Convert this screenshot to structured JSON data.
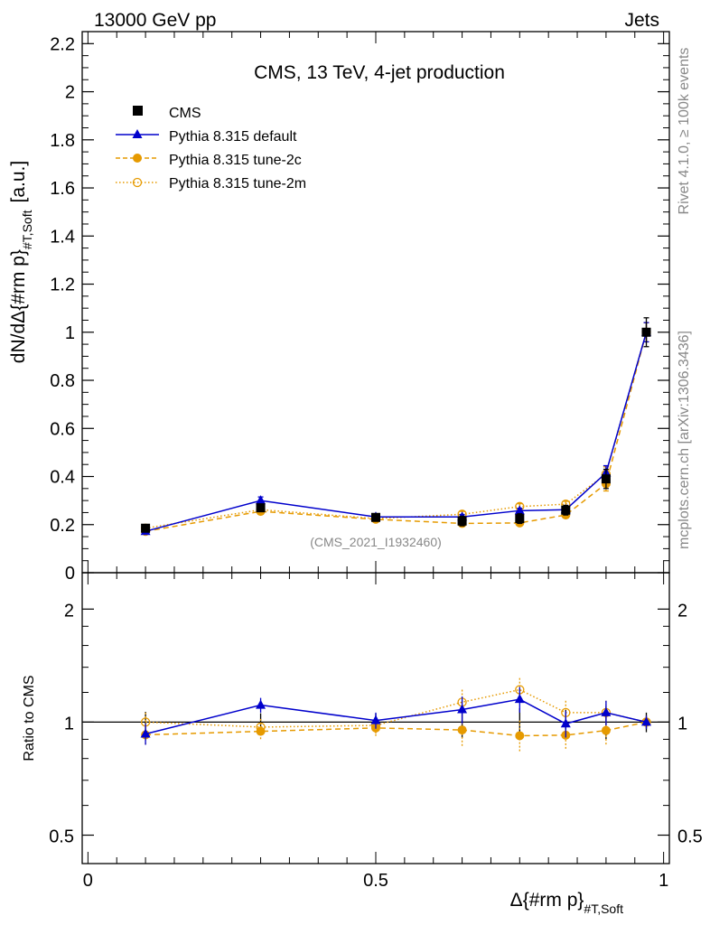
{
  "header": {
    "left": "13000 GeV pp",
    "right": "Jets"
  },
  "side_texts": {
    "rivet": "Rivet 4.1.0, ≥ 100k events",
    "mcplots": "mcplots.cern.ch [arXiv:1306.3436]"
  },
  "colors": {
    "cms": "#000000",
    "default": "#0000cc",
    "tune2c": "#e69a00",
    "tune2m": "#e69a00"
  },
  "chart_data": [
    {
      "type": "line",
      "title": "CMS, 13 TeV, 4-jet production",
      "ylabel_main": "dN/dΔ{#rm p}",
      "ylabel_sub": "#T,Soft",
      "ylabel_unit": "[a.u.]",
      "watermark": "(CMS_2021_I1932460)",
      "xlim": [
        -0.01,
        1.01
      ],
      "ylim": [
        0,
        2.25
      ],
      "y_ticks": [
        "0",
        "0.2",
        "0.4",
        "0.6",
        "0.8",
        "1",
        "1.2",
        "1.4",
        "1.6",
        "1.8",
        "2",
        "2.2"
      ],
      "y_tick_values": [
        0,
        0.2,
        0.4,
        0.6,
        0.8,
        1.0,
        1.2,
        1.4,
        1.6,
        1.8,
        2.0,
        2.2
      ],
      "x": [
        0.1,
        0.3,
        0.5,
        0.65,
        0.75,
        0.83,
        0.9,
        0.97
      ],
      "series": [
        {
          "name": "CMS",
          "key": "cms",
          "values": [
            0.185,
            0.27,
            0.23,
            0.215,
            0.225,
            0.26,
            0.39,
            1.0
          ],
          "errors": [
            0.012,
            0.015,
            0.012,
            0.02,
            0.02,
            0.02,
            0.04,
            0.06
          ]
        },
        {
          "name": "Pythia 8.315 default",
          "key": "default",
          "values": [
            0.172,
            0.3,
            0.232,
            0.232,
            0.258,
            0.262,
            0.415,
            1.0
          ],
          "errors": [
            0.01,
            0.015,
            0.01,
            0.01,
            0.01,
            0.01,
            0.03,
            0.04
          ]
        },
        {
          "name": "Pythia 8.315 tune-2c",
          "key": "tune2c",
          "values": [
            0.172,
            0.255,
            0.222,
            0.205,
            0.207,
            0.24,
            0.37,
            1.0
          ],
          "errors": [
            0.01,
            0.012,
            0.01,
            0.01,
            0.01,
            0.01,
            0.03,
            0.04
          ]
        },
        {
          "name": "Pythia 8.315 tune-2m",
          "key": "tune2m",
          "values": [
            0.185,
            0.262,
            0.225,
            0.243,
            0.275,
            0.285,
            0.41,
            1.0
          ],
          "errors": [
            0.01,
            0.012,
            0.01,
            0.012,
            0.012,
            0.012,
            0.03,
            0.04
          ]
        }
      ]
    },
    {
      "type": "line",
      "ylabel": "Ratio to CMS",
      "xlabel_main": "Δ{#rm p}",
      "xlabel_sub": "#T,Soft",
      "xlim": [
        -0.01,
        1.01
      ],
      "ylim": [
        0.42,
        2.5
      ],
      "y_scale": "log",
      "y_tick_labels": [
        "0.5",
        "1",
        "2"
      ],
      "y_tick_values": [
        0.5,
        1,
        2
      ],
      "x_tick_labels": [
        "0",
        "0.5",
        "1"
      ],
      "x_tick_values": [
        0,
        0.5,
        1
      ],
      "x": [
        0.1,
        0.3,
        0.5,
        0.65,
        0.75,
        0.83,
        0.9,
        0.97
      ],
      "band": {
        "values": [
          1,
          1,
          1,
          1,
          1,
          1,
          1,
          1
        ],
        "errors": [
          0.065,
          0.056,
          0.052,
          0.093,
          0.089,
          0.077,
          0.1,
          0.06
        ]
      },
      "series": [
        {
          "name": "Pythia 8.315 default",
          "key": "default",
          "values": [
            0.93,
            1.11,
            1.01,
            1.08,
            1.15,
            0.99,
            1.06,
            1.0
          ],
          "errors": [
            0.06,
            0.05,
            0.05,
            0.09,
            0.09,
            0.08,
            0.08,
            0.04
          ]
        },
        {
          "name": "Pythia 8.315 tune-2c",
          "key": "tune2c",
          "values": [
            0.925,
            0.945,
            0.965,
            0.953,
            0.92,
            0.923,
            0.95,
            1.0
          ],
          "errors": [
            0.06,
            0.05,
            0.05,
            0.09,
            0.09,
            0.08,
            0.08,
            0.04
          ]
        },
        {
          "name": "Pythia 8.315 tune-2m",
          "key": "tune2m",
          "values": [
            1.0,
            0.97,
            0.98,
            1.13,
            1.22,
            1.06,
            1.06,
            1.0
          ],
          "errors": [
            0.06,
            0.05,
            0.05,
            0.09,
            0.09,
            0.08,
            0.08,
            0.04
          ]
        }
      ]
    }
  ]
}
